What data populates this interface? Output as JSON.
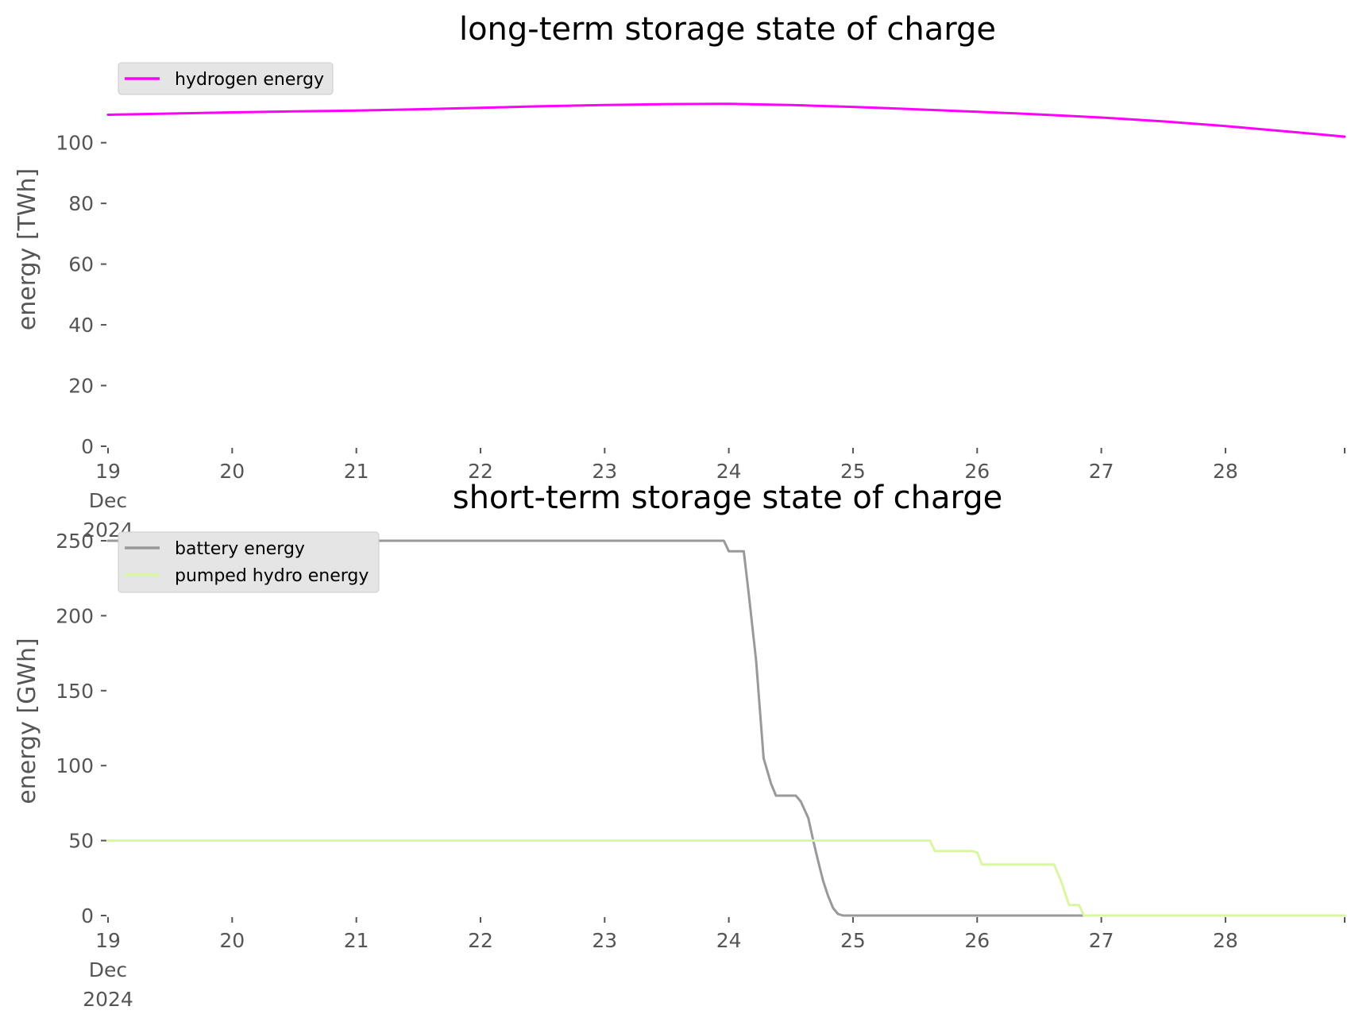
{
  "chart_data": [
    {
      "type": "line",
      "title": "long-term storage state of charge",
      "xlabel": "",
      "ylabel": "energy [TWh]",
      "x_ticks": [
        {
          "x": 19,
          "lines": [
            "19",
            "Dec",
            "2024"
          ]
        },
        {
          "x": 20,
          "lines": [
            "20"
          ]
        },
        {
          "x": 21,
          "lines": [
            "21"
          ]
        },
        {
          "x": 22,
          "lines": [
            "22"
          ]
        },
        {
          "x": 23,
          "lines": [
            "23"
          ]
        },
        {
          "x": 24,
          "lines": [
            "24"
          ]
        },
        {
          "x": 25,
          "lines": [
            "25"
          ]
        },
        {
          "x": 26,
          "lines": [
            "26"
          ]
        },
        {
          "x": 27,
          "lines": [
            "27"
          ]
        },
        {
          "x": 28,
          "lines": [
            "28"
          ]
        }
      ],
      "xlim": [
        19,
        28.96
      ],
      "y_ticks": [
        0,
        20,
        40,
        60,
        80,
        100
      ],
      "ylim": [
        0,
        113
      ],
      "grid": false,
      "legend": "top-left",
      "series": [
        {
          "name": "hydrogen energy",
          "color": "#ff00ff",
          "x": [
            19,
            19.5,
            20,
            20.5,
            21,
            21.5,
            22,
            22.5,
            23,
            23.5,
            24,
            24.5,
            25,
            25.5,
            26,
            26.5,
            27,
            27.5,
            28,
            28.5,
            28.96
          ],
          "y": [
            109.2,
            109.6,
            110.0,
            110.3,
            110.6,
            111.0,
            111.5,
            112.0,
            112.4,
            112.7,
            112.8,
            112.4,
            111.8,
            111.0,
            110.2,
            109.3,
            108.3,
            107.0,
            105.5,
            103.7,
            102.0
          ]
        }
      ]
    },
    {
      "type": "line",
      "title": "short-term storage state of charge",
      "xlabel": "",
      "ylabel": "energy [GWh]",
      "x_ticks": [
        {
          "x": 19,
          "lines": [
            "19",
            "Dec",
            "2024"
          ]
        },
        {
          "x": 20,
          "lines": [
            "20"
          ]
        },
        {
          "x": 21,
          "lines": [
            "21"
          ]
        },
        {
          "x": 22,
          "lines": [
            "22"
          ]
        },
        {
          "x": 23,
          "lines": [
            "23"
          ]
        },
        {
          "x": 24,
          "lines": [
            "24"
          ]
        },
        {
          "x": 25,
          "lines": [
            "25"
          ]
        },
        {
          "x": 26,
          "lines": [
            "26"
          ]
        },
        {
          "x": 27,
          "lines": [
            "27"
          ]
        },
        {
          "x": 28,
          "lines": [
            "28"
          ]
        }
      ],
      "xlim": [
        19,
        28.96
      ],
      "y_ticks": [
        0,
        50,
        100,
        150,
        200,
        250
      ],
      "ylim": [
        0,
        250
      ],
      "grid": false,
      "legend": "top-left",
      "series": [
        {
          "name": "battery energy",
          "color": "#999999",
          "x": [
            19,
            23.96,
            24.0,
            24.12,
            24.16,
            24.22,
            24.28,
            24.34,
            24.38,
            24.44,
            24.54,
            24.58,
            24.64,
            24.68,
            24.72,
            24.76,
            24.8,
            24.84,
            24.88,
            24.92,
            28.96
          ],
          "y": [
            250,
            250,
            243,
            243,
            215,
            170,
            105,
            88,
            80,
            80,
            80,
            76,
            65,
            50,
            36,
            23,
            13,
            5,
            1,
            0,
            0
          ]
        },
        {
          "name": "pumped hydro energy",
          "color": "#d9f7a0",
          "x": [
            19,
            25.62,
            25.66,
            25.96,
            26.0,
            26.04,
            26.62,
            26.68,
            26.74,
            26.82,
            26.86,
            28.96
          ],
          "y": [
            50,
            50,
            43,
            43,
            42,
            34,
            34,
            22,
            7,
            7,
            0,
            0
          ]
        }
      ]
    }
  ]
}
